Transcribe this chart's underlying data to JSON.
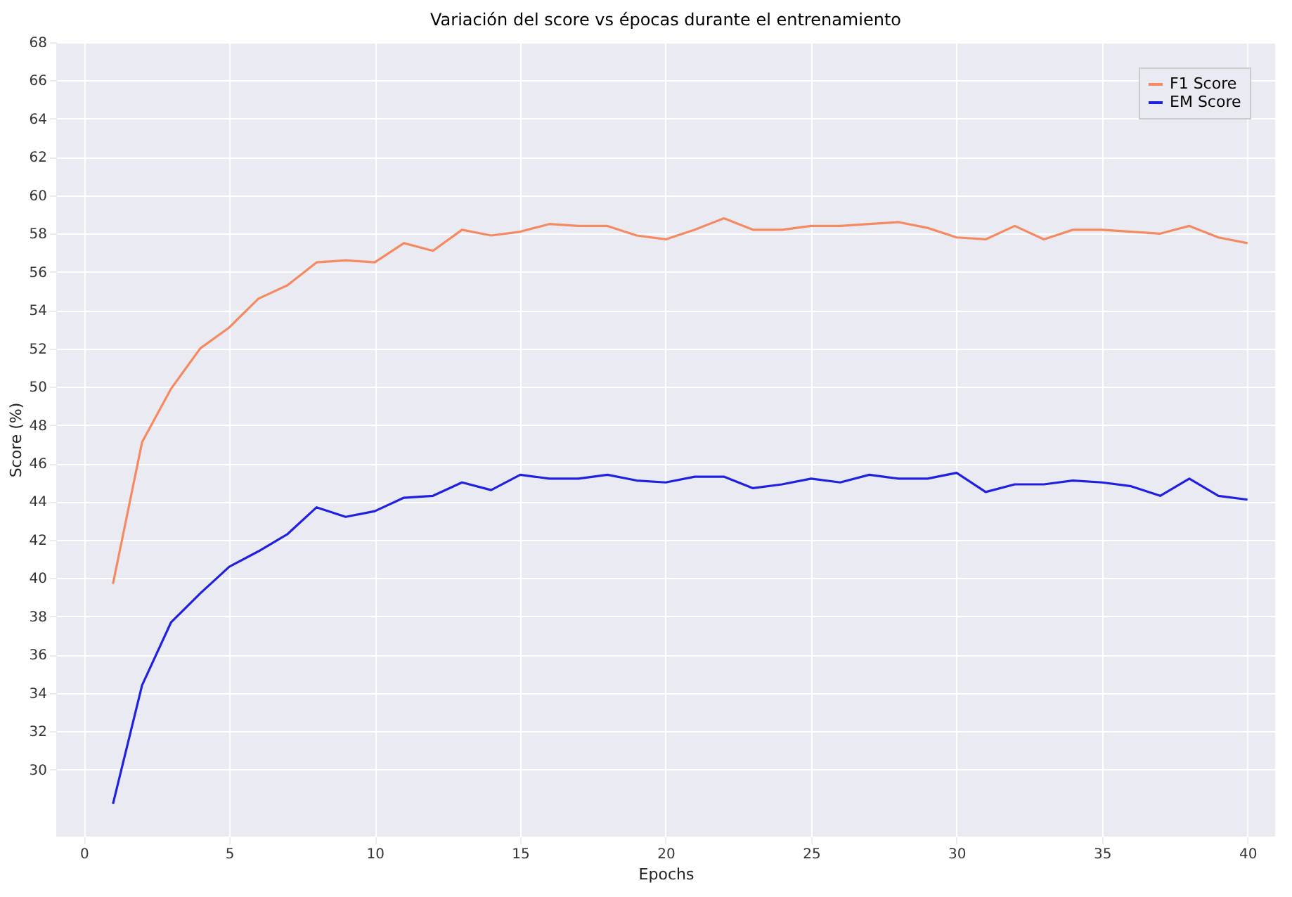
{
  "chart_data": {
    "type": "line",
    "title": "Variación del score vs épocas durante el entrenamiento",
    "xlabel": "Epochs",
    "ylabel": "Score (%)",
    "x": [
      1,
      2,
      3,
      4,
      5,
      6,
      7,
      8,
      9,
      10,
      11,
      12,
      13,
      14,
      15,
      16,
      17,
      18,
      19,
      20,
      21,
      22,
      23,
      24,
      25,
      26,
      27,
      28,
      29,
      30,
      31,
      32,
      33,
      34,
      35,
      36,
      37,
      38,
      39,
      40
    ],
    "series": [
      {
        "name": "F1 Score",
        "color": "#f58a62",
        "values": [
          39.7,
          47.1,
          49.9,
          52.0,
          53.1,
          54.6,
          55.3,
          56.5,
          56.6,
          56.5,
          57.5,
          57.1,
          58.2,
          57.9,
          58.1,
          58.5,
          58.4,
          58.4,
          57.9,
          57.7,
          58.2,
          58.8,
          58.2,
          58.2,
          58.4,
          58.4,
          58.5,
          58.6,
          58.3,
          57.8,
          57.7,
          58.4,
          57.7,
          58.2,
          58.2,
          58.1,
          58.0,
          58.4,
          57.8,
          57.5
        ]
      },
      {
        "name": "EM Score",
        "color": "#2020e0",
        "values": [
          28.2,
          34.4,
          37.7,
          39.2,
          40.6,
          41.4,
          42.3,
          43.7,
          43.2,
          43.5,
          44.2,
          44.3,
          45.0,
          44.6,
          45.4,
          45.2,
          45.2,
          45.4,
          45.1,
          45.0,
          45.3,
          45.3,
          44.7,
          44.9,
          45.2,
          45.0,
          45.4,
          45.2,
          45.2,
          45.5,
          44.5,
          44.9,
          44.9,
          45.1,
          45.0,
          44.8,
          44.3,
          45.2,
          44.3,
          44.1
        ]
      }
    ],
    "xlim": [
      -0.95,
      40.95
    ],
    "ylim": [
      26.5,
      68
    ],
    "xticks": [
      0,
      5,
      10,
      15,
      20,
      25,
      30,
      35,
      40
    ],
    "yticks": [
      30,
      32,
      34,
      36,
      38,
      40,
      42,
      44,
      46,
      48,
      50,
      52,
      54,
      56,
      58,
      60,
      62,
      64,
      66,
      68
    ],
    "grid": true,
    "legend": "top right",
    "marker": "none",
    "line_style": "solid"
  }
}
